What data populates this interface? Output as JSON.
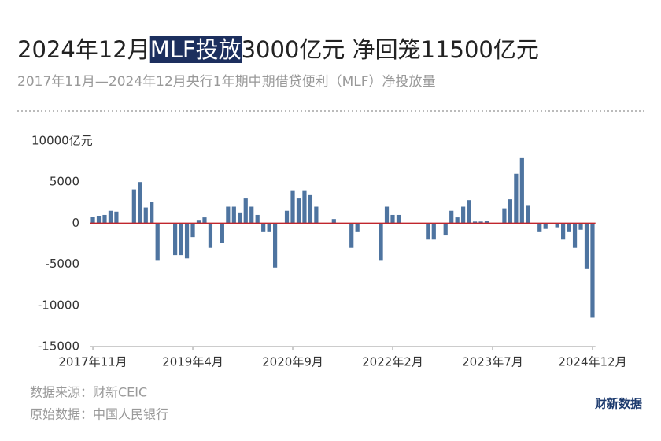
{
  "chart_data": {
    "type": "bar",
    "title_segments": [
      "2024年12月",
      "MLF投放",
      "3000亿元 净回笼11500亿元"
    ],
    "subtitle": "2017年11月—2024年12月央行1年期中期借贷便利（MLF）净投放量",
    "sources": [
      "数据来源：财新CEIC",
      "原始数据：中国人民银行"
    ],
    "brand": "财新数据",
    "color": "#4e74a0",
    "zero_line_color": "#c0262d",
    "grid": false,
    "ylim": [
      -15000,
      10000
    ],
    "yticks": [
      {
        "value": 10000,
        "label": "10000亿元"
      },
      5000,
      0,
      -5000,
      -10000,
      -15000
    ],
    "categories": [
      "2017年11月",
      null,
      null,
      null,
      null,
      null,
      null,
      null,
      null,
      null,
      null,
      null,
      null,
      null,
      null,
      null,
      null,
      "2019年4月",
      null,
      null,
      null,
      null,
      null,
      null,
      null,
      null,
      null,
      null,
      null,
      null,
      null,
      null,
      null,
      null,
      "2020年9月",
      null,
      null,
      null,
      null,
      null,
      null,
      null,
      null,
      null,
      null,
      null,
      null,
      null,
      null,
      null,
      null,
      "2022年2月",
      null,
      null,
      null,
      null,
      null,
      null,
      null,
      null,
      null,
      null,
      null,
      null,
      null,
      null,
      null,
      null,
      "2023年7月",
      null,
      null,
      null,
      null,
      null,
      null,
      null,
      null,
      null,
      null,
      null,
      null,
      null,
      null,
      null,
      null,
      "2024年12月"
    ],
    "values": [
      750,
      900,
      1000,
      1500,
      1400,
      0,
      0,
      4100,
      5000,
      1900,
      2600,
      -4500,
      0,
      0,
      -3900,
      -3900,
      -4300,
      -1700,
      400,
      700,
      -3000,
      0,
      -2400,
      2000,
      2000,
      1300,
      3000,
      2000,
      1000,
      -1000,
      -1000,
      -5400,
      0,
      1500,
      4000,
      3000,
      4000,
      3500,
      2000,
      0,
      0,
      500,
      0,
      0,
      -3000,
      -1000,
      0,
      0,
      0,
      -4500,
      2000,
      1000,
      1000,
      0,
      0,
      0,
      0,
      -2000,
      -2000,
      0,
      -1500,
      1500,
      700,
      2000,
      2800,
      200,
      200,
      300,
      0,
      0,
      1800,
      2900,
      6000,
      8000,
      2200,
      0,
      -1000,
      -700,
      0,
      -500,
      -2000,
      -1000,
      -3000,
      -800,
      -5500,
      -11500
    ]
  }
}
